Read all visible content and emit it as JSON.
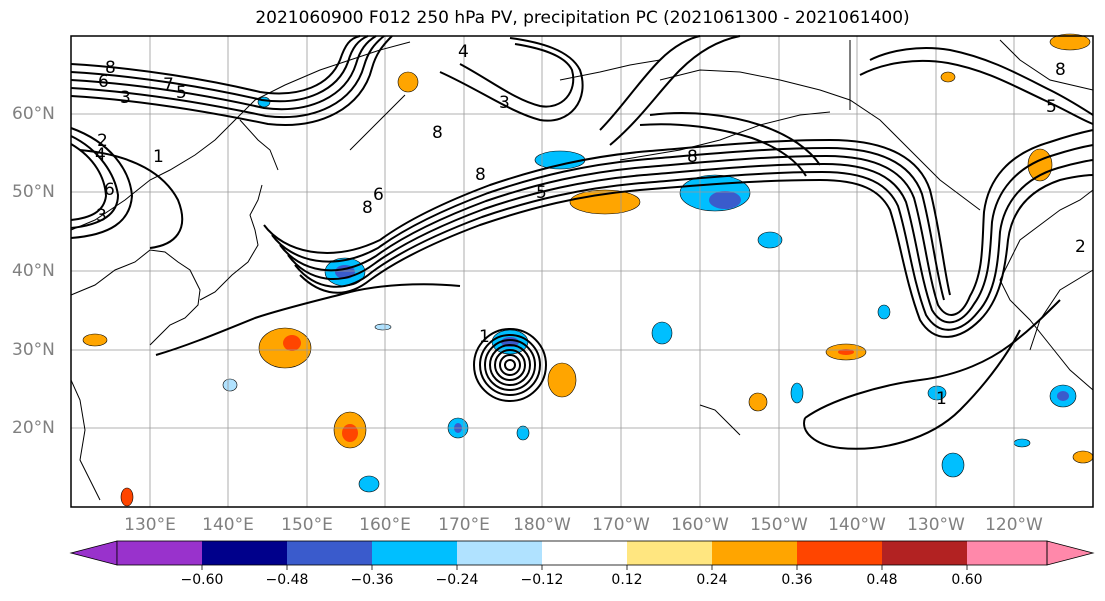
{
  "title": "2021060900 F012 250 hPa PV, precipitation PC (2021061300 - 2021061400)",
  "map": {
    "lat_labels": [
      "60°N",
      "50°N",
      "40°N",
      "30°N",
      "20°N"
    ],
    "lon_labels": [
      "130°E",
      "140°E",
      "150°E",
      "160°E",
      "170°E",
      "180°W",
      "170°W",
      "160°W",
      "150°W",
      "140°W",
      "130°W",
      "120°W"
    ],
    "contour_labels": [
      "8",
      "6",
      "3",
      "7",
      "5",
      "4",
      "2",
      "1",
      "8",
      "5",
      "8",
      "8",
      "6",
      "8",
      "1",
      "4",
      "3",
      "6",
      "8",
      "5",
      "2",
      "1",
      "3"
    ]
  },
  "colorbar": {
    "ticks": [
      "−0.60",
      "−0.48",
      "−0.36",
      "−0.24",
      "−0.12",
      "0.12",
      "0.24",
      "0.36",
      "0.48",
      "0.60"
    ],
    "colors": [
      "#9932cc",
      "#00008b",
      "#3a5bcc",
      "#00bfff",
      "#b0e2ff",
      "#ffffff",
      "#ffe680",
      "#ffa500",
      "#ff4500",
      "#b22222",
      "#ff88aa"
    ]
  }
}
